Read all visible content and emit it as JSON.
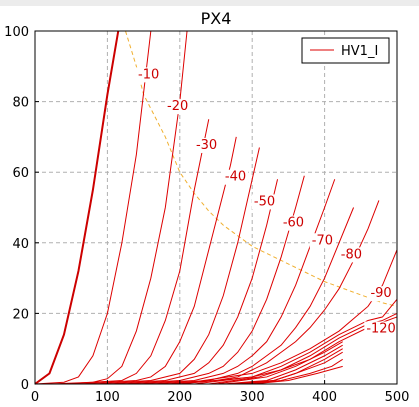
{
  "chart_data": {
    "type": "line",
    "title": "PX4",
    "xlabel": "",
    "ylabel": "",
    "xlim": [
      0,
      500
    ],
    "ylim": [
      0,
      100
    ],
    "x_ticks": [
      0,
      100,
      200,
      300,
      400,
      500
    ],
    "y_ticks": [
      0,
      20,
      40,
      60,
      80,
      100
    ],
    "grid": true,
    "legend": {
      "placement": "top-right",
      "entries": [
        "HV1_I"
      ]
    },
    "colors": {
      "series": "#dd0000",
      "bold_series": "#cc0000",
      "boundary": "#f0b030",
      "grid": "#b0b0b0"
    },
    "series": [
      {
        "name": "HV1_I",
        "bold": true,
        "points": [
          [
            0,
            0
          ],
          [
            20,
            3
          ],
          [
            40,
            14
          ],
          [
            60,
            32
          ],
          [
            80,
            55
          ],
          [
            100,
            82
          ],
          [
            115,
            100
          ]
        ]
      },
      {
        "points": [
          [
            0,
            0
          ],
          [
            40,
            0.5
          ],
          [
            60,
            2
          ],
          [
            80,
            8
          ],
          [
            100,
            20
          ],
          [
            120,
            40
          ],
          [
            140,
            65
          ],
          [
            160,
            100
          ]
        ]
      },
      {
        "points": [
          [
            20,
            0
          ],
          [
            80,
            0.5
          ],
          [
            100,
            1.5
          ],
          [
            120,
            5
          ],
          [
            140,
            15
          ],
          [
            160,
            30
          ],
          [
            180,
            50
          ],
          [
            200,
            80
          ],
          [
            210,
            100
          ]
        ]
      },
      {
        "points": [
          [
            40,
            0
          ],
          [
            120,
            1
          ],
          [
            140,
            3
          ],
          [
            160,
            8
          ],
          [
            180,
            18
          ],
          [
            200,
            32
          ],
          [
            220,
            55
          ],
          [
            240,
            75
          ]
        ]
      },
      {
        "points": [
          [
            60,
            0
          ],
          [
            140,
            1
          ],
          [
            160,
            2
          ],
          [
            180,
            5
          ],
          [
            200,
            12
          ],
          [
            220,
            22
          ],
          [
            240,
            38
          ],
          [
            270,
            62
          ],
          [
            278,
            70
          ]
        ]
      },
      {
        "points": [
          [
            80,
            0
          ],
          [
            160,
            1
          ],
          [
            200,
            3
          ],
          [
            220,
            7
          ],
          [
            240,
            14
          ],
          [
            260,
            25
          ],
          [
            280,
            40
          ],
          [
            300,
            58
          ],
          [
            310,
            67
          ]
        ]
      },
      {
        "points": [
          [
            100,
            0
          ],
          [
            180,
            1
          ],
          [
            220,
            3
          ],
          [
            240,
            6
          ],
          [
            260,
            11
          ],
          [
            280,
            19
          ],
          [
            300,
            30
          ],
          [
            320,
            45
          ],
          [
            335,
            58
          ]
        ]
      },
      {
        "points": [
          [
            120,
            0
          ],
          [
            200,
            1
          ],
          [
            240,
            3
          ],
          [
            260,
            5
          ],
          [
            280,
            9
          ],
          [
            300,
            15
          ],
          [
            320,
            24
          ],
          [
            340,
            36
          ],
          [
            360,
            50
          ],
          [
            372,
            59
          ]
        ]
      },
      {
        "points": [
          [
            140,
            0
          ],
          [
            220,
            1
          ],
          [
            260,
            3
          ],
          [
            280,
            5
          ],
          [
            300,
            8
          ],
          [
            320,
            12
          ],
          [
            340,
            19
          ],
          [
            360,
            28
          ],
          [
            380,
            39
          ],
          [
            400,
            50
          ],
          [
            414,
            58
          ]
        ]
      },
      {
        "points": [
          [
            160,
            0
          ],
          [
            240,
            1
          ],
          [
            280,
            3
          ],
          [
            300,
            5
          ],
          [
            320,
            8
          ],
          [
            340,
            11
          ],
          [
            360,
            16
          ],
          [
            380,
            22
          ],
          [
            400,
            30
          ],
          [
            420,
            40
          ],
          [
            440,
            50
          ]
        ]
      },
      {
        "points": [
          [
            180,
            0
          ],
          [
            250,
            1
          ],
          [
            280,
            2
          ],
          [
            300,
            4
          ],
          [
            320,
            6
          ],
          [
            340,
            9
          ],
          [
            360,
            12
          ],
          [
            380,
            16
          ],
          [
            400,
            21
          ],
          [
            420,
            27
          ],
          [
            440,
            35
          ],
          [
            460,
            44
          ],
          [
            475,
            52
          ]
        ]
      },
      {
        "points": [
          [
            200,
            0
          ],
          [
            300,
            3
          ],
          [
            340,
            6
          ],
          [
            380,
            10
          ],
          [
            420,
            15
          ],
          [
            460,
            22
          ],
          [
            480,
            28
          ],
          [
            500,
            38
          ]
        ]
      },
      {
        "points": [
          [
            200,
            0
          ],
          [
            300,
            2
          ],
          [
            340,
            5
          ],
          [
            380,
            9
          ],
          [
            420,
            14
          ],
          [
            460,
            18
          ],
          [
            480,
            19
          ],
          [
            500,
            24
          ]
        ]
      },
      {
        "points": [
          [
            220,
            0
          ],
          [
            300,
            2
          ],
          [
            340,
            4
          ],
          [
            380,
            8
          ],
          [
            420,
            13
          ],
          [
            460,
            17
          ],
          [
            480,
            18
          ],
          [
            500,
            20
          ]
        ]
      },
      {
        "points": [
          [
            240,
            0
          ],
          [
            310,
            2
          ],
          [
            340,
            4
          ],
          [
            380,
            7
          ],
          [
            420,
            12
          ],
          [
            460,
            16
          ],
          [
            500,
            19
          ]
        ]
      },
      {
        "points": [
          [
            250,
            0
          ],
          [
            320,
            2
          ],
          [
            360,
            5
          ],
          [
            400,
            9
          ],
          [
            425,
            12
          ]
        ]
      },
      {
        "points": [
          [
            260,
            0
          ],
          [
            320,
            1
          ],
          [
            360,
            4
          ],
          [
            400,
            8
          ],
          [
            425,
            11
          ]
        ]
      },
      {
        "points": [
          [
            270,
            0
          ],
          [
            330,
            1
          ],
          [
            360,
            3
          ],
          [
            400,
            7
          ],
          [
            425,
            10
          ]
        ]
      },
      {
        "points": [
          [
            280,
            0
          ],
          [
            330,
            1
          ],
          [
            360,
            3
          ],
          [
            400,
            6
          ],
          [
            425,
            9
          ]
        ]
      },
      {
        "points": [
          [
            290,
            0
          ],
          [
            340,
            1
          ],
          [
            380,
            3
          ],
          [
            410,
            5
          ],
          [
            425,
            7
          ]
        ]
      },
      {
        "points": [
          [
            300,
            0
          ],
          [
            350,
            1
          ],
          [
            390,
            3
          ],
          [
            425,
            5
          ]
        ]
      }
    ],
    "boundary": {
      "style": "dashed",
      "points": [
        [
          125,
          100
        ],
        [
          140,
          90
        ],
        [
          150,
          82
        ],
        [
          160,
          78
        ],
        [
          180,
          70
        ],
        [
          200,
          60
        ],
        [
          220,
          54
        ],
        [
          240,
          49
        ],
        [
          260,
          45
        ],
        [
          280,
          42
        ],
        [
          300,
          39
        ],
        [
          330,
          36
        ],
        [
          360,
          33
        ],
        [
          400,
          29
        ],
        [
          440,
          26
        ],
        [
          480,
          23
        ],
        [
          500,
          22
        ]
      ]
    },
    "annotations": [
      {
        "text": "-10",
        "x": 157,
        "y": 88
      },
      {
        "text": "-20",
        "x": 197,
        "y": 79
      },
      {
        "text": "-30",
        "x": 237,
        "y": 68
      },
      {
        "text": "-40",
        "x": 277,
        "y": 59
      },
      {
        "text": "-50",
        "x": 317,
        "y": 52
      },
      {
        "text": "-60",
        "x": 357,
        "y": 46
      },
      {
        "text": "-70",
        "x": 397,
        "y": 41
      },
      {
        "text": "-80",
        "x": 437,
        "y": 37
      },
      {
        "text": "-90",
        "x": 478,
        "y": 26
      },
      {
        "text": "-120",
        "x": 478,
        "y": 16
      }
    ]
  }
}
